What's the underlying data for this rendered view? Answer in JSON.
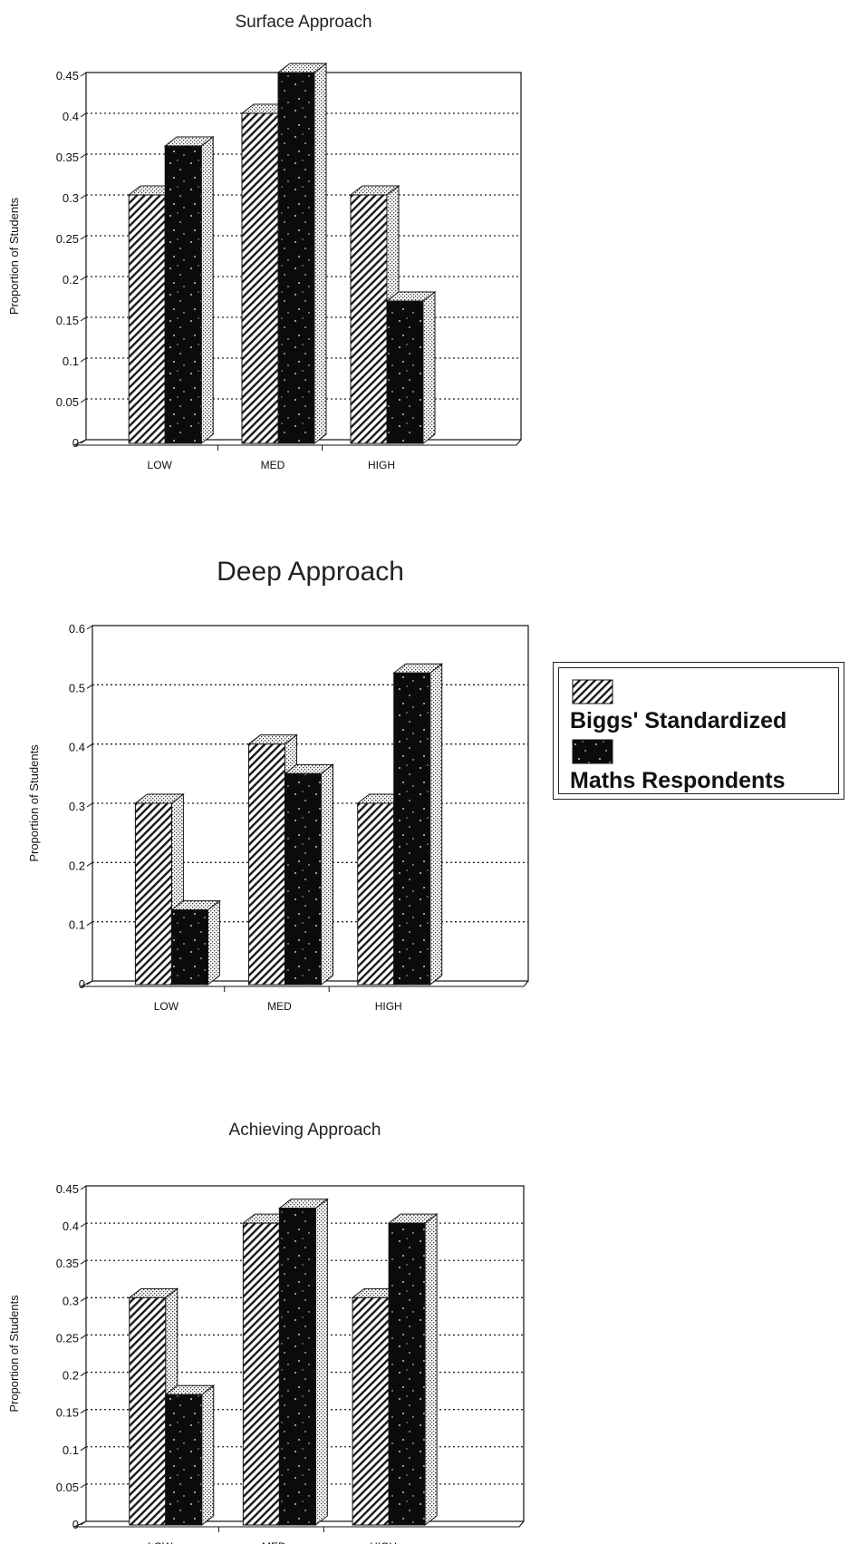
{
  "chart_data": [
    {
      "type": "bar",
      "title": "Surface Approach",
      "ylabel": "Proportion of Students",
      "xlabel": "",
      "categories": [
        "LOW",
        "MED",
        "HIGH"
      ],
      "series": [
        {
          "name": "Biggs' Standardized",
          "values": [
            0.3,
            0.4,
            0.3
          ]
        },
        {
          "name": "Maths Respondents",
          "values": [
            0.36,
            0.45,
            0.17
          ]
        }
      ],
      "ylim": [
        0,
        0.45
      ],
      "yticks": [
        "0",
        "0.05",
        "0.1",
        "0.15",
        "0.2",
        "0.25",
        "0.3",
        "0.35",
        "0.4",
        "0.45"
      ],
      "grid": true
    },
    {
      "type": "bar",
      "title": "Deep Approach",
      "ylabel": "Proportion of Students",
      "xlabel": "",
      "categories": [
        "LOW",
        "MED",
        "HIGH"
      ],
      "series": [
        {
          "name": "Biggs' Standardized",
          "values": [
            0.3,
            0.4,
            0.3
          ]
        },
        {
          "name": "Maths Respondents",
          "values": [
            0.12,
            0.35,
            0.52
          ]
        }
      ],
      "ylim": [
        0,
        0.6
      ],
      "yticks": [
        "0",
        "0.1",
        "0.2",
        "0.3",
        "0.4",
        "0.5",
        "0.6"
      ],
      "grid": true
    },
    {
      "type": "bar",
      "title": "Achieving Approach",
      "ylabel": "Proportion of Students",
      "xlabel": "",
      "categories": [
        "LOW",
        "MED",
        "HIGH"
      ],
      "series": [
        {
          "name": "Biggs' Standardized",
          "values": [
            0.3,
            0.4,
            0.3
          ]
        },
        {
          "name": "Maths Respondents",
          "values": [
            0.17,
            0.42,
            0.4
          ]
        }
      ],
      "ylim": [
        0,
        0.45
      ],
      "yticks": [
        "0",
        "0.05",
        "0.1",
        "0.15",
        "0.2",
        "0.25",
        "0.3",
        "0.35",
        "0.4",
        "0.45"
      ],
      "grid": true
    }
  ],
  "legend": {
    "placement": "right",
    "items": [
      {
        "label": "Biggs' Standardized",
        "pattern": "hatched"
      },
      {
        "label": "Maths Respondents",
        "pattern": "speckled-dark"
      }
    ]
  }
}
